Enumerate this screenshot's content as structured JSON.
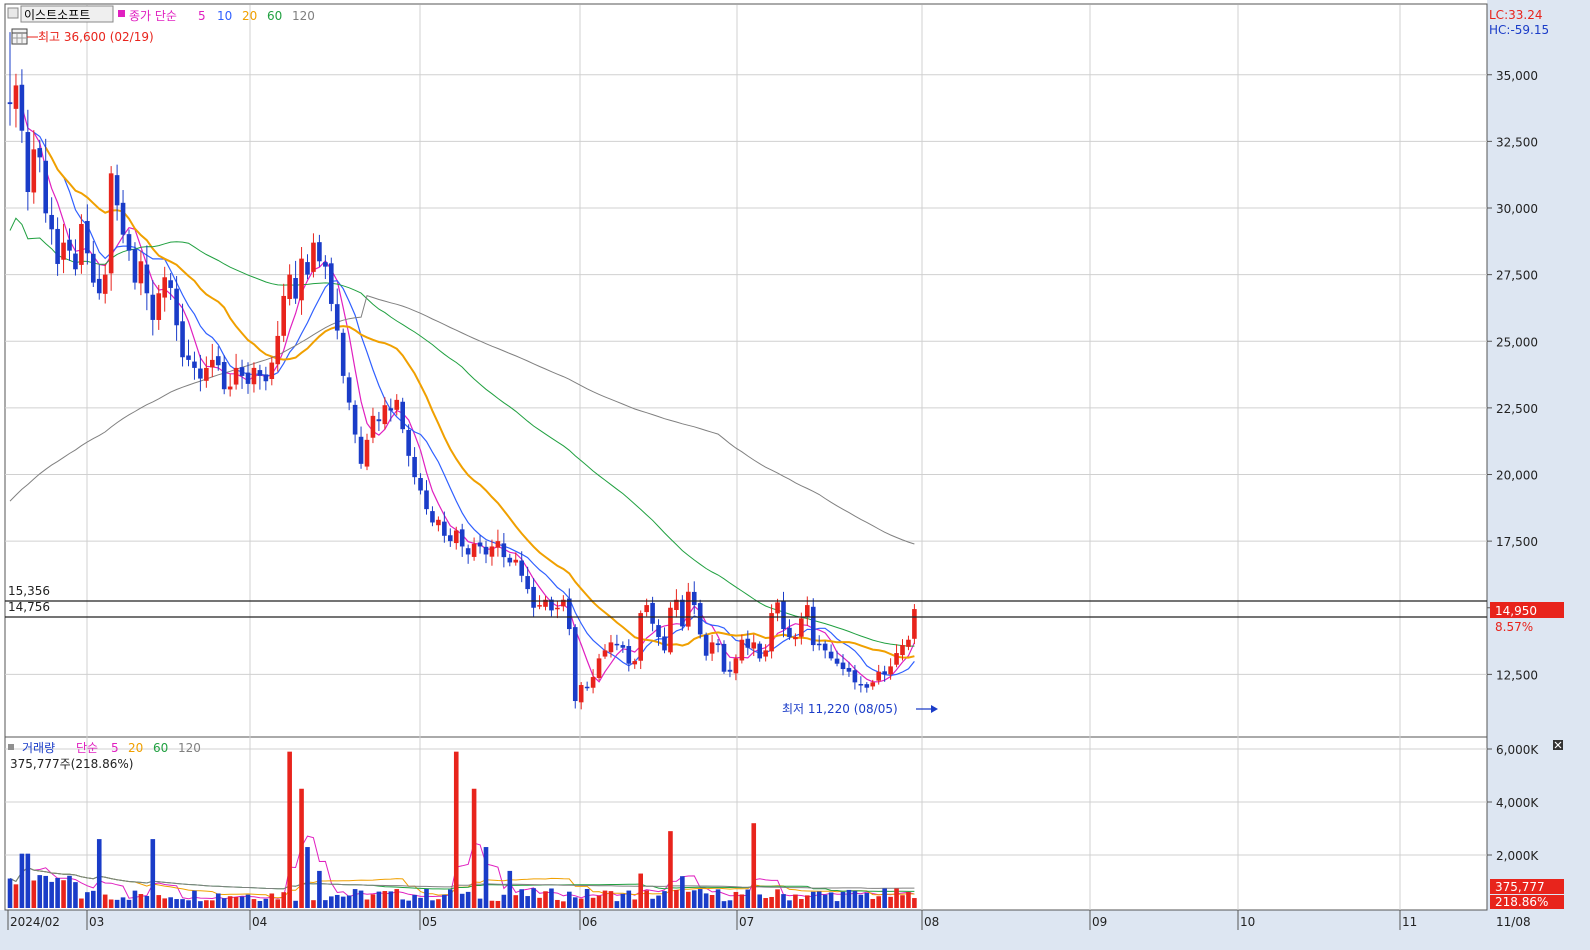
{
  "stock_name": "이스트소프트",
  "price_legend": {
    "label": "종가 단순",
    "periods": [
      "5",
      "10",
      "20",
      "60",
      "120"
    ],
    "colors": [
      "#e020c0",
      "#3060ff",
      "#f0a000",
      "#20a040",
      "#808080"
    ]
  },
  "volume_legend": {
    "label": "거래량",
    "ma_label": "단순",
    "periods": [
      "5",
      "20",
      "60",
      "120"
    ],
    "colors": [
      "#e020c0",
      "#f0a000",
      "#20a040",
      "#808080"
    ],
    "current": "375,777주(218.86%)"
  },
  "corner": {
    "lc": "LC:33.24",
    "hc": "HC:-59.15"
  },
  "annotations": {
    "high": "최고 36,600 (02/19)",
    "low": "최저 11,220 (08/05)",
    "level_1": "15,356",
    "level_2": "14,756",
    "last_price": "14,950",
    "last_change": "8.57%",
    "last_volume": "375,777",
    "last_volume_pct": "218.86%"
  },
  "colors": {
    "up": "#e8241c",
    "down": "#1a3cc8",
    "bg": "#ffffff",
    "axis_bg": "#dde6f2",
    "grid": "#d0d0d0"
  },
  "chart_data": [
    {
      "type": "candlestick",
      "series_name": "이스트소프트",
      "ylim": [
        10500,
        36600
      ],
      "yticks": [
        12500,
        15000,
        17500,
        20000,
        22500,
        25000,
        27500,
        30000,
        32500,
        35000
      ],
      "ytick_labels": [
        "12,500",
        "15,000",
        "17,500",
        "20,000",
        "22,500",
        "25,000",
        "27,500",
        "30,000",
        "32,500",
        "35,000"
      ],
      "month_labels": [
        "2024/02",
        "03",
        "04",
        "05",
        "06",
        "07",
        "08",
        "09",
        "10",
        "11",
        "11/08"
      ],
      "horizontal_levels": [
        15356,
        14756
      ],
      "closes": [
        33900,
        34600,
        32900,
        30600,
        32200,
        31900,
        29800,
        29200,
        27900,
        28700,
        28400,
        27700,
        29400,
        28300,
        27200,
        26800,
        27500,
        31300,
        30100,
        29000,
        28400,
        27200,
        28000,
        26800,
        25800,
        26800,
        27400,
        27000,
        25600,
        24400,
        24300,
        24000,
        23600,
        24000,
        24300,
        24100,
        23200,
        23300,
        24000,
        23700,
        23400,
        24000,
        23700,
        23500,
        24200,
        25200,
        26700,
        27500,
        26600,
        28100,
        27500,
        28700,
        28000,
        27800,
        26400,
        25400,
        23700,
        22700,
        21500,
        20400,
        21300,
        22200,
        22000,
        22600,
        22400,
        22800,
        21700,
        20700,
        19900,
        19400,
        18700,
        18200,
        18300,
        17700,
        17500,
        17900,
        17300,
        17000,
        17400,
        17300,
        17000,
        17300,
        17500,
        16900,
        16700,
        16800,
        16200,
        15700,
        15000,
        15100,
        15300,
        14900,
        15000,
        15300,
        14200,
        11500,
        12100,
        12000,
        12400,
        13100,
        13400,
        13700,
        13600,
        13500,
        12900,
        13000,
        14800,
        15100,
        14400,
        13900,
        13400,
        15000,
        15300,
        14300,
        15600,
        15100,
        14000,
        13200,
        13700,
        13600,
        12600,
        12600,
        13100,
        13800,
        13500,
        13700,
        13100,
        13400,
        14800,
        15200,
        14200,
        13900,
        13900,
        14600,
        15100,
        13600,
        13600,
        13400,
        13100,
        12900,
        12700,
        12600,
        12200,
        12100,
        12000,
        12200,
        12600,
        12500,
        12800,
        13300,
        13600,
        13800,
        14950
      ],
      "ohlc_first": {
        "open": 33900,
        "high": 36600,
        "low": 31900,
        "close": 33900
      },
      "high_point": {
        "label": "최고 36,600 (02/19)",
        "value": 36600
      },
      "low_point": {
        "label": "최저 11,220 (08/05)",
        "value": 11220
      }
    },
    {
      "type": "bar",
      "series_name": "거래량",
      "ylim": [
        0,
        6400000
      ],
      "yticks": [
        2000000,
        4000000,
        6000000
      ],
      "ytick_labels": [
        "2,000K",
        "4,000K",
        "6,000K"
      ],
      "last_volume": 375777
    }
  ]
}
